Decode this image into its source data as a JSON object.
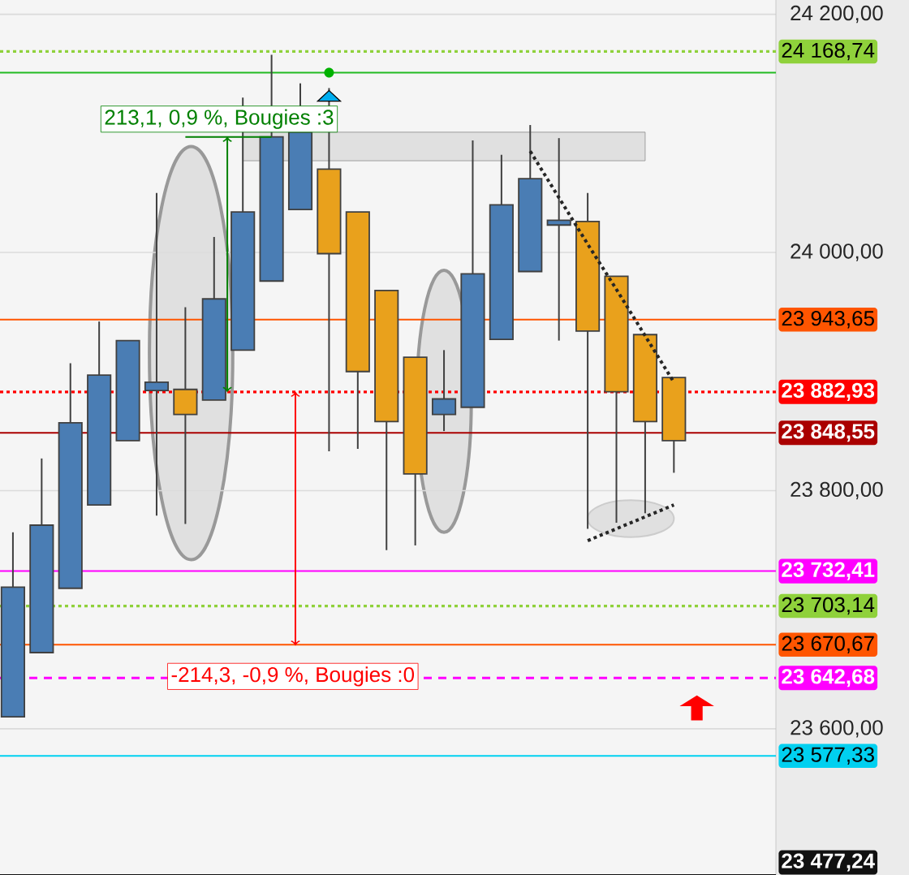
{
  "chart_data": {
    "type": "candlestick",
    "categories": [
      null,
      null,
      null,
      null,
      null,
      null,
      null,
      null,
      null,
      null,
      null,
      null,
      null,
      null,
      null,
      null,
      null,
      null,
      null,
      null,
      null,
      null,
      null,
      null
    ],
    "ohlc": [
      [
        23610,
        23765,
        23610,
        23719
      ],
      [
        23664,
        23827,
        23664,
        23771
      ],
      [
        23718,
        23907,
        23718,
        23857
      ],
      [
        23788,
        23942,
        23788,
        23897
      ],
      [
        23842,
        23926,
        23842,
        23926
      ],
      [
        23884,
        24050,
        23779,
        23891
      ],
      [
        23885,
        23954,
        23772,
        23864
      ],
      [
        23876,
        24013,
        23876,
        23961
      ],
      [
        23918,
        24130,
        23918,
        24034
      ],
      [
        23976,
        24166,
        23976,
        24097
      ],
      [
        24036,
        24142,
        24036,
        24101
      ],
      [
        24070,
        24138,
        23833,
        23999
      ],
      [
        24034,
        24034,
        23835,
        23900
      ],
      [
        23968,
        23968,
        23750,
        23858
      ],
      [
        23912,
        23912,
        23754,
        23814
      ],
      [
        23864,
        23918,
        23850,
        23877
      ],
      [
        23870,
        24094,
        23870,
        23982
      ],
      [
        23927,
        24082,
        23927,
        24040
      ],
      [
        23984,
        24107,
        23984,
        24062
      ],
      [
        24023,
        24096,
        23926,
        24027
      ],
      [
        24026,
        24050,
        23768,
        23934
      ],
      [
        23980,
        23980,
        23773,
        23883
      ],
      [
        23931,
        23931,
        23781,
        23858
      ],
      [
        23895,
        23895,
        23815,
        23842
      ]
    ],
    "colors": [
      "#4a7db4",
      "#4a7db4",
      "#4a7db4",
      "#4a7db4",
      "#4a7db4",
      "#4a7db4",
      "#e9a11c",
      "#4a7db4",
      "#4a7db4",
      "#4a7db4",
      "#4a7db4",
      "#e9a11c",
      "#e9a11c",
      "#e9a11c",
      "#e9a11c",
      "#4a7db4",
      "#4a7db4",
      "#4a7db4",
      "#4a7db4",
      "#4a7db4",
      "#e9a11c",
      "#e9a11c",
      "#e9a11c",
      "#e9a11c"
    ],
    "ylim": [
      23477.24,
      24212
    ],
    "yticks": [
      {
        "value": 24200,
        "label": "24 200,00"
      },
      {
        "value": 24000,
        "label": "24 000,00"
      },
      {
        "value": 23800,
        "label": "23 800,00"
      },
      {
        "value": 23600,
        "label": "23 600,00"
      }
    ],
    "grid": "y",
    "ref_lines": [
      {
        "axis": "y",
        "value": 24168.74,
        "label": "24 168,74",
        "color": "#8fd13b",
        "line_style": "dotted"
      },
      {
        "axis": "y",
        "value": 24151,
        "color": "#22bb22",
        "line_style": "solid"
      },
      {
        "axis": "y",
        "value": 23943.65,
        "label": "23 943,65",
        "color": "#ff5500",
        "line_style": "solid"
      },
      {
        "axis": "y",
        "value": 23882.93,
        "label": "23 882,93",
        "color": "#ff0000",
        "line_style": "dotted"
      },
      {
        "axis": "y",
        "value": 23848.55,
        "label": "23 848,55",
        "color": "#aa0000",
        "line_style": "solid"
      },
      {
        "axis": "y",
        "value": 23732.41,
        "label": "23 732,41",
        "color": "#ff00ff",
        "line_style": "solid"
      },
      {
        "axis": "y",
        "value": 23703.14,
        "label": "23 703,14",
        "color": "#8fd13b",
        "line_style": "dotted"
      },
      {
        "axis": "y",
        "value": 23670.67,
        "label": "23 670,67",
        "color": "#ff5500",
        "line_style": "solid"
      },
      {
        "axis": "y",
        "value": 23642.68,
        "label": "23 642,68",
        "color": "#ff00ff",
        "line_style": "dashed"
      },
      {
        "axis": "y",
        "value": 23577.33,
        "label": "23 577,33",
        "color": "#00d0f0",
        "line_style": "solid"
      },
      {
        "axis": "y",
        "value": 23477.24,
        "label": "23 477,24",
        "color": "#111111",
        "line_style": "solid"
      }
    ],
    "series": [
      {
        "type": "line",
        "values": [
          null,
          null,
          null,
          null,
          null,
          null,
          null,
          null,
          null,
          null,
          null,
          null,
          null,
          null,
          null,
          null,
          null,
          null,
          24085,
          24046,
          24007,
          23969,
          23930,
          23891
        ],
        "color": "#262626",
        "line_style": "dotted"
      },
      {
        "type": "line",
        "values": [
          null,
          null,
          null,
          null,
          null,
          null,
          null,
          null,
          null,
          null,
          null,
          null,
          null,
          null,
          null,
          null,
          null,
          null,
          null,
          null,
          23758,
          23768,
          23778,
          23788
        ],
        "color": "#262626",
        "line_style": "dotted"
      }
    ],
    "annotations": [
      "213,1, 0,9 %, Bougies :3",
      "-214,3, -0,9 %, Bougies :0"
    ]
  }
}
